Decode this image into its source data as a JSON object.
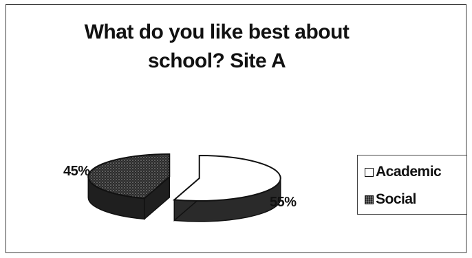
{
  "chart_data": {
    "type": "pie",
    "title": "What do you like best about school? Site A",
    "title_lines": [
      "What do you like best about",
      "school? Site A"
    ],
    "categories": [
      "Academic",
      "Social"
    ],
    "values": [
      55,
      45
    ],
    "data_labels": [
      "55%",
      "45%"
    ],
    "colors": [
      "#ffffff",
      "#2a2a2a"
    ],
    "legend_position": "right",
    "style": "exploded 3d pie"
  }
}
